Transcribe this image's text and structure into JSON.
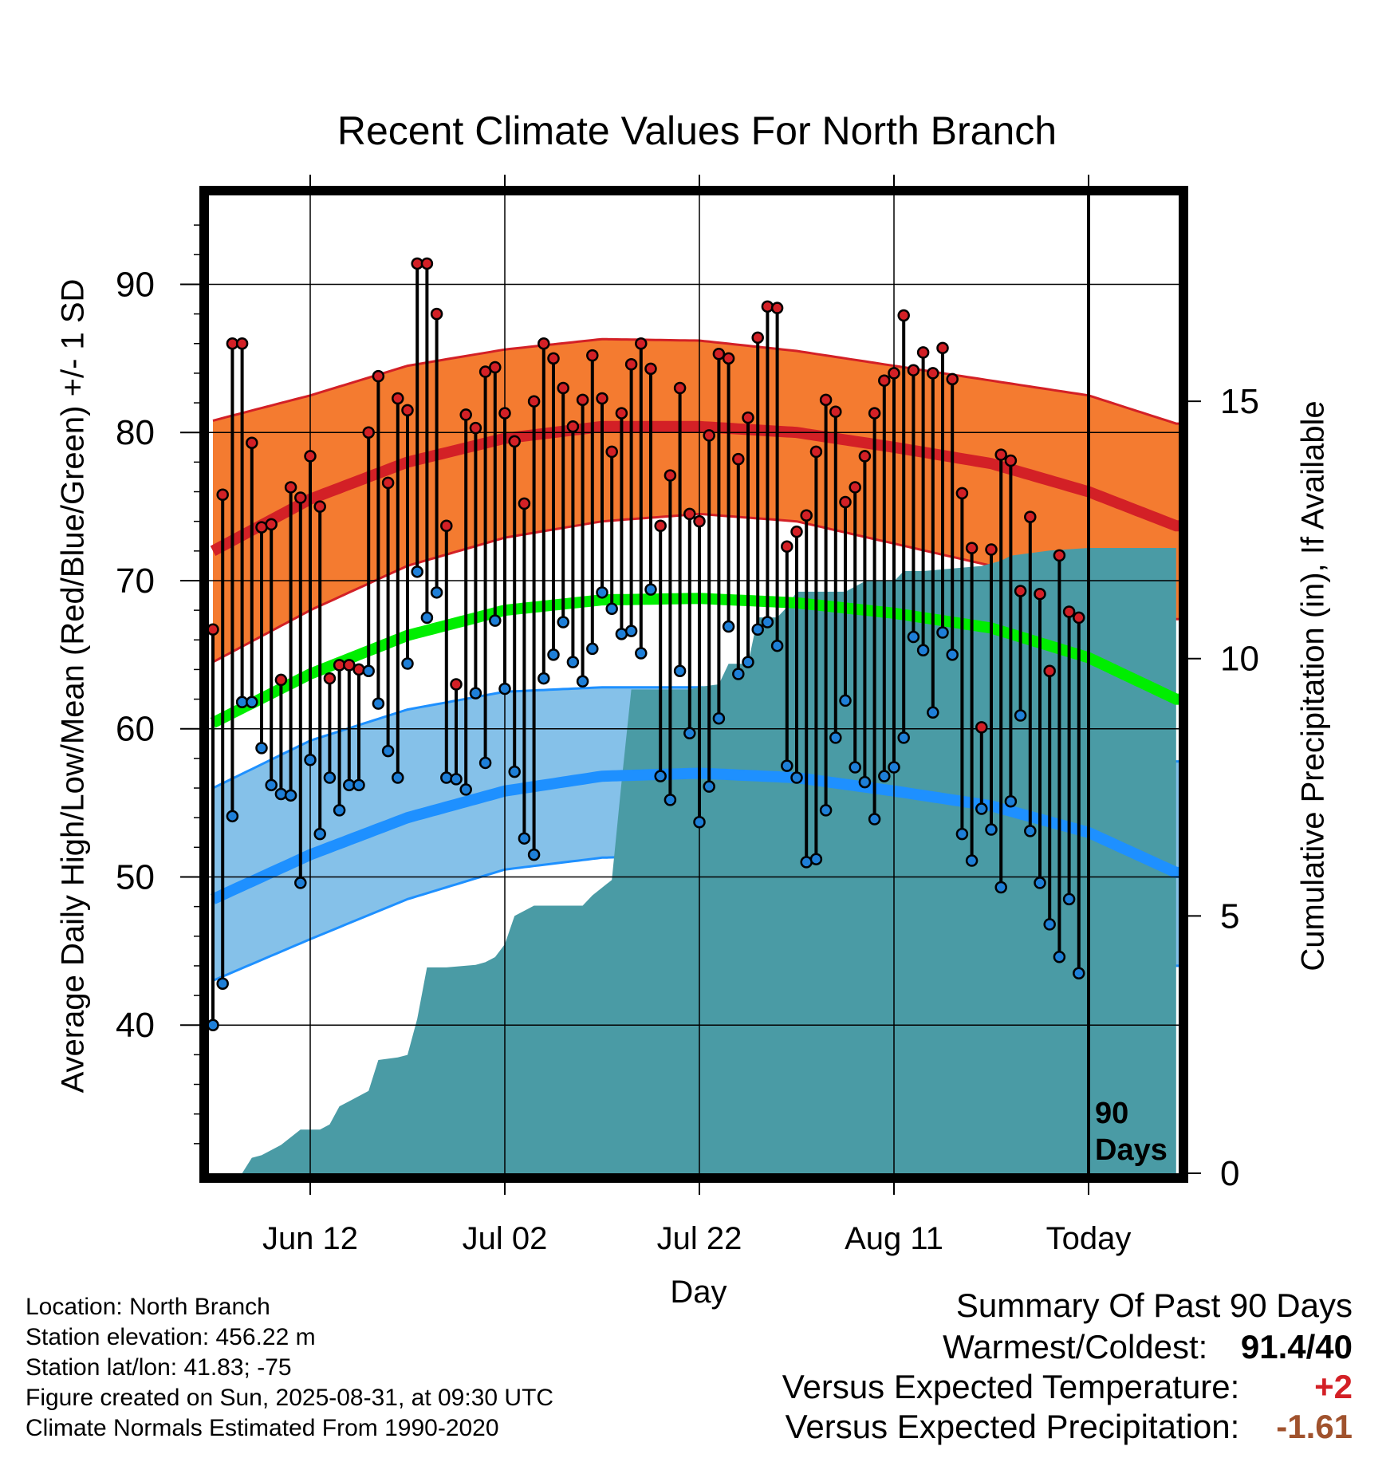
{
  "title": "Recent Climate Values For North Branch",
  "y_axis_label": "Average Daily High/Low/Mean (Red/Blue/Green) +/- 1 SD",
  "y2_axis_label": "Cumulative Precipitation (in), If Available",
  "x_axis_label": "Day",
  "today_label": "Today",
  "period_label_line1": "90",
  "period_label_line2": "Days",
  "metadata": {
    "location": "Location: North Branch",
    "elevation": "Station elevation: 456.22 m",
    "latlon": "Station lat/lon: 41.83; -75",
    "created": "Figure created on Sun, 2025-08-31, at 09:30 UTC",
    "normals": "Climate Normals Estimated From 1990-2020"
  },
  "summary": {
    "heading": "Summary Of Past 90 Days",
    "warm_cold_label": "Warmest/Coldest:",
    "warm_cold_value": "91.4/40",
    "temp_label": "Versus Expected Temperature:",
    "temp_value": "+2",
    "precip_label": "Versus Expected Precipitation:",
    "precip_value": "-1.61"
  },
  "colors": {
    "high": "#d32026",
    "high_band": "#f47b30",
    "low": "#1e90ff",
    "low_band": "#85c1e9",
    "mean": "#00ee00",
    "precip": "#4a9ba5",
    "high_marker": "#d32026",
    "low_marker": "#1e7fd8",
    "warm_value": "#d32026",
    "precip_value": "#a0522d"
  },
  "chart_data": {
    "type": "line",
    "x_ticks": [
      "Jun 12",
      "Jul 02",
      "Jul 22",
      "Aug 11",
      "Today"
    ],
    "x_tick_day_index": [
      10,
      30,
      50,
      70,
      90
    ],
    "ylim": [
      30,
      96
    ],
    "y_ticks": [
      40,
      50,
      60,
      70,
      80,
      90
    ],
    "y2lim": [
      0,
      19
    ],
    "y2_ticks": [
      0,
      5,
      10,
      15
    ],
    "grid": true,
    "normals": {
      "days": [
        0,
        10,
        20,
        30,
        40,
        50,
        60,
        70,
        80,
        90,
        99
      ],
      "high_mean": [
        72.0,
        75.5,
        78.0,
        79.6,
        80.4,
        80.4,
        80.0,
        79.0,
        77.9,
        76.0,
        73.7
      ],
      "high_upper": [
        80.8,
        82.5,
        84.5,
        85.6,
        86.3,
        86.2,
        85.5,
        84.5,
        83.5,
        82.5,
        80.6
      ],
      "high_lower": [
        64.5,
        68.0,
        71.0,
        72.9,
        74.0,
        74.5,
        74.0,
        72.5,
        71.0,
        69.5,
        67.4
      ],
      "mean": [
        60.4,
        63.7,
        66.3,
        68.0,
        68.7,
        68.8,
        68.5,
        67.8,
        66.8,
        64.8,
        62.0
      ],
      "low_mean": [
        48.5,
        51.5,
        54.0,
        55.8,
        56.8,
        57.0,
        56.7,
        55.8,
        54.8,
        53.0,
        50.3
      ],
      "low_upper": [
        56.0,
        59.2,
        61.3,
        62.5,
        62.8,
        62.8,
        62.6,
        62.0,
        61.0,
        59.5,
        57.8
      ],
      "low_lower": [
        43.0,
        45.8,
        48.5,
        50.5,
        51.3,
        51.5,
        51.3,
        50.5,
        48.7,
        46.5,
        44.0
      ]
    },
    "series": [
      {
        "name": "High",
        "values": [
          66.7,
          75.8,
          86.0,
          86.0,
          79.3,
          73.6,
          73.8,
          63.3,
          76.3,
          75.6,
          78.4,
          75.0,
          63.4,
          64.3,
          64.3,
          64.0,
          80.0,
          83.8,
          76.6,
          82.3,
          81.5,
          91.4,
          91.4,
          88.0,
          73.7,
          63.0,
          81.2,
          80.3,
          84.1,
          84.4,
          81.3,
          79.4,
          75.2,
          82.1,
          86.0,
          85.0,
          83.0,
          80.4,
          82.2,
          85.2,
          82.3,
          78.7,
          81.3,
          84.6,
          86.0,
          84.3,
          73.7,
          77.1,
          83.0,
          74.5,
          74.0,
          79.8,
          85.3,
          85.0,
          78.2,
          81.0,
          86.4,
          88.5,
          88.4,
          72.3,
          73.3,
          74.4,
          78.7,
          82.2,
          81.4,
          75.3,
          76.3,
          78.4,
          81.3,
          83.5,
          84.0,
          87.9,
          84.2,
          85.4,
          84.0,
          85.7,
          83.6,
          75.9,
          72.2,
          60.1,
          72.1,
          78.5,
          78.1,
          69.3,
          74.3,
          69.1,
          63.9,
          71.7,
          67.9,
          67.5
        ]
      },
      {
        "name": "Low",
        "values": [
          40.0,
          42.8,
          54.1,
          61.8,
          61.8,
          58.7,
          56.2,
          55.6,
          55.5,
          49.6,
          57.9,
          52.9,
          56.7,
          54.5,
          56.2,
          56.2,
          63.9,
          61.7,
          58.5,
          56.7,
          64.4,
          70.6,
          67.5,
          69.2,
          56.7,
          56.6,
          55.9,
          62.4,
          57.7,
          67.3,
          62.7,
          57.1,
          52.6,
          51.5,
          63.4,
          65.0,
          67.2,
          64.5,
          63.2,
          65.4,
          69.2,
          68.1,
          66.4,
          66.6,
          65.1,
          69.4,
          56.8,
          55.2,
          63.9,
          59.7,
          53.7,
          56.1,
          60.7,
          66.9,
          63.7,
          64.5,
          66.7,
          67.2,
          65.6,
          57.5,
          56.7,
          51.0,
          51.2,
          54.5,
          59.4,
          61.9,
          57.4,
          56.4,
          53.9,
          56.8,
          57.4,
          59.4,
          66.2,
          65.3,
          61.1,
          66.5,
          65.0,
          52.9,
          51.1,
          54.6,
          53.2,
          49.3,
          55.1,
          60.9,
          53.1,
          49.6,
          46.8,
          44.6,
          48.5,
          43.5
        ]
      },
      {
        "name": "Cumulative Precipitation",
        "days": [
          0,
          3,
          4,
          5,
          7,
          9,
          11,
          12,
          13,
          14,
          15,
          16,
          17,
          19,
          20,
          21,
          22,
          24,
          27,
          28,
          29,
          30,
          31,
          33,
          38,
          39,
          41,
          42,
          43,
          46,
          49,
          50,
          52,
          53,
          55,
          56,
          58,
          59,
          60,
          65,
          66,
          67,
          70,
          71,
          73,
          76,
          79,
          81,
          82,
          86,
          90,
          93,
          99
        ],
        "values": [
          0.0,
          0.0,
          0.3,
          0.35,
          0.55,
          0.85,
          0.85,
          0.95,
          1.3,
          1.4,
          1.5,
          1.6,
          2.2,
          2.25,
          2.3,
          3.0,
          4.0,
          4.0,
          4.05,
          4.1,
          4.2,
          4.45,
          5.0,
          5.2,
          5.2,
          5.4,
          5.7,
          7.6,
          9.4,
          9.4,
          9.4,
          9.45,
          9.5,
          9.9,
          9.9,
          10.8,
          10.8,
          11.0,
          11.3,
          11.3,
          11.4,
          11.5,
          11.5,
          11.7,
          11.7,
          11.75,
          11.8,
          11.9,
          12.0,
          12.1,
          12.15,
          12.15,
          12.15
        ]
      }
    ]
  }
}
